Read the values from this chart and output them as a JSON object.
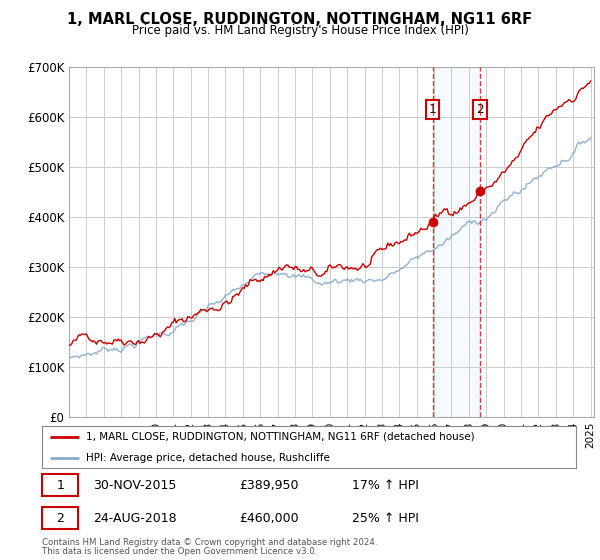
{
  "title": "1, MARL CLOSE, RUDDINGTON, NOTTINGHAM, NG11 6RF",
  "subtitle": "Price paid vs. HM Land Registry's House Price Index (HPI)",
  "background_color": "#ffffff",
  "plot_bg_color": "#ffffff",
  "grid_color": "#cccccc",
  "red_line_color": "#cc0000",
  "blue_line_color": "#88aacc",
  "x_start_year": 1995,
  "x_end_year": 2025,
  "y_min": 0,
  "y_max": 700000,
  "y_ticks": [
    0,
    100000,
    200000,
    300000,
    400000,
    500000,
    600000,
    700000
  ],
  "y_tick_labels": [
    "£0",
    "£100K",
    "£200K",
    "£300K",
    "£400K",
    "£500K",
    "£600K",
    "£700K"
  ],
  "transaction1_date": "30-NOV-2015",
  "transaction1_price": 389950,
  "transaction1_hpi_diff": "17% ↑ HPI",
  "transaction1_year": 2015.917,
  "transaction2_date": "24-AUG-2018",
  "transaction2_price": 460000,
  "transaction2_hpi_diff": "25% ↑ HPI",
  "transaction2_year": 2018.646,
  "legend_line1": "1, MARL CLOSE, RUDDINGTON, NOTTINGHAM, NG11 6RF (detached house)",
  "legend_line2": "HPI: Average price, detached house, Rushcliffe",
  "footer1": "Contains HM Land Registry data © Crown copyright and database right 2024.",
  "footer2": "This data is licensed under the Open Government Licence v3.0."
}
